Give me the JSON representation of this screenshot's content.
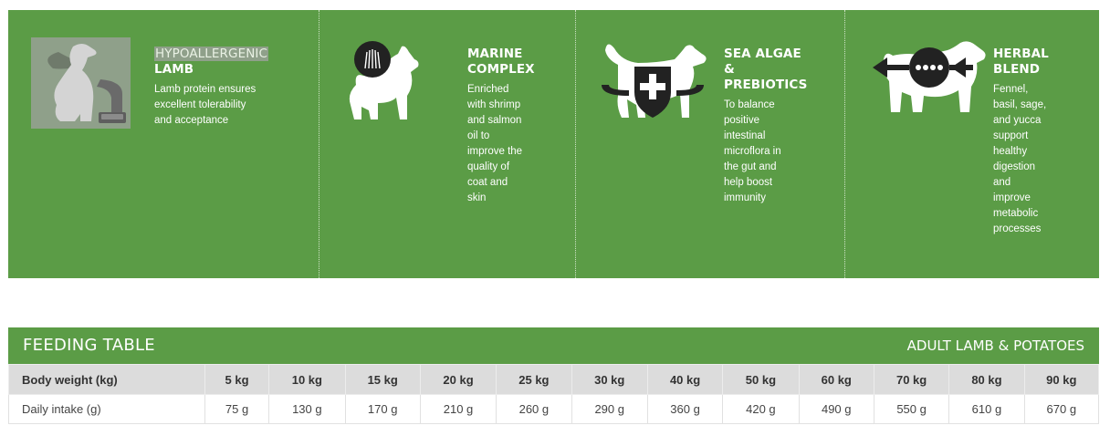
{
  "features": [
    {
      "icon": "dog-with-bowl-icon",
      "title_highlight": "HYPOALLERGENIC",
      "title_rest": "LAMB",
      "description": [
        "Lamb protein ensures",
        "excellent tolerability",
        "and acceptance"
      ]
    },
    {
      "icon": "dog-coat-icon",
      "title": [
        "MARINE",
        "COMPLEX"
      ],
      "description": [
        "Enriched",
        "with shrimp",
        "and salmon",
        "oil to",
        "improve the",
        "quality of",
        "coat and",
        "skin"
      ]
    },
    {
      "icon": "dog-shield-cross-icon",
      "title": [
        "SEA ALGAE",
        "&",
        "PREBIOTICS"
      ],
      "description": [
        "To balance",
        "positive",
        "intestinal",
        "microflora in",
        "the gut and",
        "help boost",
        "immunity"
      ]
    },
    {
      "icon": "dog-digestion-icon",
      "title": [
        "HERBAL",
        "BLEND"
      ],
      "description": [
        "Fennel,",
        "basil, sage,",
        "and yucca",
        "support",
        "healthy",
        "digestion",
        "and",
        "improve",
        "metabolic",
        "processes"
      ]
    }
  ],
  "feeding_table": {
    "title": "FEEDING TABLE",
    "subtitle": "ADULT LAMB & POTATOES",
    "row_labels": [
      "Body weight (kg)",
      "Daily intake (g)"
    ],
    "body_weight": [
      "5 kg",
      "10 kg",
      "15 kg",
      "20 kg",
      "25 kg",
      "30 kg",
      "40 kg",
      "50 kg",
      "60 kg",
      "70 kg",
      "80 kg",
      "90 kg"
    ],
    "daily_intake": [
      "75 g",
      "130 g",
      "170 g",
      "210 g",
      "260 g",
      "290 g",
      "360 g",
      "420 g",
      "490 g",
      "550 g",
      "610 g",
      "670 g"
    ]
  },
  "colors": {
    "brand_green": "#5b9c46",
    "header_gray": "#dcdcdc"
  }
}
